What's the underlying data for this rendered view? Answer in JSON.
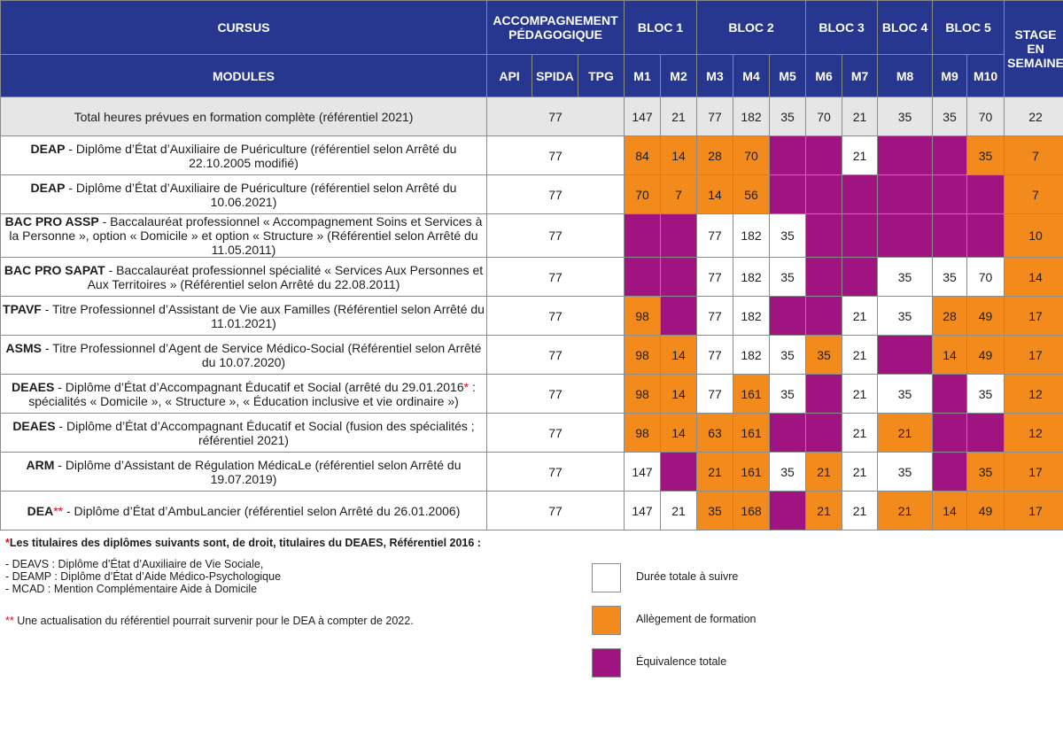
{
  "header": {
    "cursus": "CURSUS",
    "accompagnement": "ACCOMPAGNEMENT PÉDAGOGIQUE",
    "bloc1": "BLOC 1",
    "bloc2": "BLOC 2",
    "bloc3": "BLOC 3",
    "bloc4": "BLOC 4",
    "bloc5": "BLOC 5",
    "stage": "STAGE EN SEMAINE",
    "modules": "MODULES",
    "api": "API",
    "spida": "SPIDA",
    "tpg": "TPG",
    "m1": "M1",
    "m2": "M2",
    "m3": "M3",
    "m4": "M4",
    "m5": "M5",
    "m6": "M6",
    "m7": "M7",
    "m8": "M8",
    "m9": "M9",
    "m10": "M10"
  },
  "total": {
    "label": "Total heures prévues en formation complète (référentiel 2021)",
    "acc": "77",
    "m1": "147",
    "m2": "21",
    "m3": "77",
    "m4": "182",
    "m5": "35",
    "m6": "70",
    "m7": "21",
    "m8": "35",
    "m9": "35",
    "m10": "70",
    "stage": "22"
  },
  "rows": [
    {
      "code": "DEAP",
      "code_mark": "",
      "desc": " - Diplôme d’État d’Auxiliaire de Puériculture (référentiel selon Arrêté du 22.10.2005 modifié)",
      "acc": "77",
      "m1": "84",
      "m2": "14",
      "m3": "28",
      "m4": "70",
      "m5": "",
      "m6": "",
      "m7": "21",
      "m8": "",
      "m9": "",
      "m10": "35",
      "stage": "7"
    },
    {
      "code": "DEAP",
      "code_mark": "",
      "desc": " - Diplôme d’État d’Auxiliaire de Puériculture (référentiel selon Arrêté du 10.06.2021)",
      "acc": "77",
      "m1": "70",
      "m2": "7",
      "m3": "14",
      "m4": "56",
      "m5": "",
      "m6": "",
      "m7": "",
      "m8": "",
      "m9": "",
      "m10": "",
      "stage": "7"
    },
    {
      "code": "BAC PRO ASSP",
      "code_mark": "",
      "desc": " - Baccalauréat professionnel « Accompagnement Soins et Services à la Personne », option « Domicile » et option « Structure » (Référentiel selon Arrêté du 11.05.2011)",
      "acc": "77",
      "m1": "",
      "m2": "",
      "m3": "77",
      "m4": "182",
      "m5": "35",
      "m6": "",
      "m7": "",
      "m8": "",
      "m9": "",
      "m10": "",
      "stage": "10"
    },
    {
      "code": "BAC PRO SAPAT",
      "code_mark": "",
      "desc": " - Baccalauréat professionnel spécialité « Services Aux Personnes et Aux Territoires » (Référentiel selon Arrêté du 22.08.2011)",
      "acc": "77",
      "m1": "",
      "m2": "",
      "m3": "77",
      "m4": "182",
      "m5": "35",
      "m6": "",
      "m7": "",
      "m8": "35",
      "m9": "35",
      "m10": "70",
      "stage": "14"
    },
    {
      "code": "TPAVF",
      "code_mark": "",
      "desc": " - Titre Professionnel d’Assistant de Vie aux Familles (Référentiel selon Arrêté du 11.01.2021)",
      "acc": "77",
      "m1": "98",
      "m2": "",
      "m3": "77",
      "m4": "182",
      "m5": "",
      "m6": "",
      "m7": "21",
      "m8": "35",
      "m9": "28",
      "m10": "49",
      "stage": "17"
    },
    {
      "code": "ASMS",
      "code_mark": "",
      "desc": " - Titre Professionnel d’Agent de Service Médico-Social (Référentiel selon Arrêté du 10.07.2020)",
      "acc": "77",
      "m1": "98",
      "m2": "14",
      "m3": "77",
      "m4": "182",
      "m5": "35",
      "m6": "35",
      "m7": "21",
      "m8": "",
      "m9": "14",
      "m10": "49",
      "stage": "17"
    },
    {
      "code": "DEAES",
      "code_mark": "",
      "desc": " - Diplôme d’État d’Accompagnant Éducatif et Social (arrêté du 29.01.2016",
      "desc_mark": "*",
      "desc_tail": " : spécialités « Domicile », « Structure », « Éducation inclusive et vie ordinaire »)",
      "acc": "77",
      "m1": "98",
      "m2": "14",
      "m3": "77",
      "m4": "161",
      "m5": "35",
      "m6": "",
      "m7": "21",
      "m8": "35",
      "m9": "",
      "m10": "35",
      "stage": "12"
    },
    {
      "code": "DEAES",
      "code_mark": "",
      "desc": " - Diplôme d’État d’Accompagnant Éducatif et Social (fusion des spécialités ; référentiel 2021)",
      "acc": "77",
      "m1": "98",
      "m2": "14",
      "m3": "63",
      "m4": "161",
      "m5": "",
      "m6": "",
      "m7": "21",
      "m8": "21",
      "m9": "",
      "m10": "",
      "stage": "12"
    },
    {
      "code": "ARM",
      "code_mark": "",
      "desc": " - Diplôme d’Assistant de Régulation MédicaLe (référentiel selon Arrêté du 19.07.2019)",
      "acc": "77",
      "m1": "147",
      "m2": "",
      "m3": "21",
      "m4": "161",
      "m5": "35",
      "m6": "21",
      "m7": "21",
      "m8": "35",
      "m9": "",
      "m10": "35",
      "stage": "17"
    },
    {
      "code": "DEA",
      "code_mark": "**",
      "desc": " - Diplôme d’État d’AmbuLancier (référentiel selon Arrêté du 26.01.2006)",
      "acc": "77",
      "m1": "147",
      "m2": "21",
      "m3": "35",
      "m4": "168",
      "m5": "",
      "m6": "21",
      "m7": "21",
      "m8": "21",
      "m9": "14",
      "m10": "49",
      "stage": "17"
    }
  ],
  "notes": {
    "title_mark": "*",
    "title": "Les titulaires des diplômes suivants sont, de droit, titulaires du DEAES, Référentiel 2016 :",
    "items": [
      "- DEAVS : Diplôme d’État d’Auxiliaire de Vie Sociale,",
      "- DEAMP : Diplôme d’État d’Aide Médico-Psychologique",
      "- MCAD : Mention Complémentaire Aide à Domicile"
    ],
    "footnote_mark": "**",
    "footnote": " Une actualisation du référentiel pourrait survenir pour le DEA à compter de 2022."
  },
  "legend": [
    {
      "label": "Durée totale à suivre",
      "color": "#ffffff"
    },
    {
      "label": "Allègement de formation",
      "color": "#f28a1c"
    },
    {
      "label": "Équivalence totale",
      "color": "#a01482"
    }
  ],
  "colors": {
    "header": "#27378f",
    "orange": "#f28a1c",
    "purple": "#a01482",
    "total_bg": "#e6e6e6"
  },
  "cell_status": [
    [
      "o",
      "o",
      "o",
      "o",
      "p",
      "p",
      "w",
      "p",
      "p",
      "o",
      "o"
    ],
    [
      "o",
      "o",
      "o",
      "o",
      "p",
      "p",
      "p",
      "p",
      "p",
      "p",
      "o"
    ],
    [
      "p",
      "p",
      "w",
      "w",
      "w",
      "p",
      "p",
      "p",
      "p",
      "p",
      "o"
    ],
    [
      "p",
      "p",
      "w",
      "w",
      "w",
      "p",
      "p",
      "w",
      "w",
      "w",
      "o"
    ],
    [
      "o",
      "p",
      "w",
      "w",
      "p",
      "p",
      "w",
      "w",
      "o",
      "o",
      "o"
    ],
    [
      "o",
      "o",
      "w",
      "w",
      "w",
      "o",
      "w",
      "p",
      "o",
      "o",
      "o"
    ],
    [
      "o",
      "o",
      "w",
      "o",
      "w",
      "p",
      "w",
      "w",
      "p",
      "w",
      "o"
    ],
    [
      "o",
      "o",
      "o",
      "o",
      "p",
      "p",
      "w",
      "o",
      "p",
      "p",
      "o"
    ],
    [
      "w",
      "p",
      "o",
      "o",
      "w",
      "o",
      "w",
      "w",
      "p",
      "o",
      "o"
    ],
    [
      "w",
      "w",
      "o",
      "o",
      "p",
      "o",
      "w",
      "o",
      "o",
      "o",
      "o"
    ]
  ]
}
